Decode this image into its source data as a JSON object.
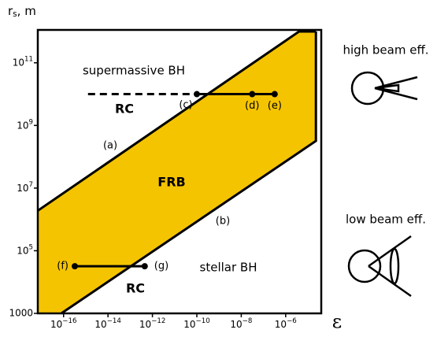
{
  "chart_data": {
    "type": "log_region",
    "xscale": "log",
    "yscale": "log",
    "xlabel": "ε",
    "ylabel": "rs, m",
    "xlim": [
      6.9e-18,
      4e-05
    ],
    "ylim": [
      1000,
      1120000000000.0
    ],
    "xticks": [
      {
        "value": 1e-16,
        "label": "10−16"
      },
      {
        "value": 1e-14,
        "label": "10−14"
      },
      {
        "value": 1e-12,
        "label": "10−12"
      },
      {
        "value": 1e-10,
        "label": "10−10"
      },
      {
        "value": 1e-08,
        "label": "10−8"
      },
      {
        "value": 1e-06,
        "label": "10−6"
      }
    ],
    "yticks": [
      1000,
      {
        "value": 100000.0,
        "label": "105"
      },
      {
        "value": 10000000.0,
        "label": "107"
      },
      {
        "value": 1000000000.0,
        "label": "109"
      },
      {
        "value": 100000000000.0,
        "label": "1011"
      }
    ],
    "band": {
      "color": "#f5c400",
      "x": [
        6.9e-18,
        6.9e-18,
        4e-06,
        2.3e-05,
        2.3e-05,
        7.9e-17
      ],
      "y": [
        1000,
        1900000.0,
        1000000000000.0,
        1000000000000.0,
        320000000.0,
        1000
      ]
    },
    "lines": [
      {
        "x": [
          6.9e-18,
          4e-06,
          2.3e-05
        ],
        "y": [
          1900000.0,
          1000000000000.0,
          1000000000000.0
        ],
        "dash": false
      },
      {
        "x": [
          7.9e-17,
          2.3e-05,
          2.3e-05
        ],
        "y": [
          1000,
          320000000.0,
          1000000000000.0
        ],
        "dash": false
      },
      {
        "x": [
          1.26e-15,
          1e-10
        ],
        "y": [
          10000000000.0,
          10000000000.0
        ],
        "dash": true
      },
      {
        "x": [
          1e-10,
          3.2e-07
        ],
        "y": [
          10000000000.0,
          10000000000.0
        ],
        "dash": false
      },
      {
        "x": [
          3.2e-16,
          4.5e-13
        ],
        "y": [
          32000.0,
          32000.0
        ],
        "dash": false
      }
    ],
    "points": {
      "x": [
        1e-10,
        3.1e-08,
        3.2e-07,
        3.2e-16,
        4.5e-13
      ],
      "y": [
        10000000000.0,
        10000000000.0,
        10000000000.0,
        32000.0,
        32000.0
      ],
      "labels": [
        "(c)",
        "(d)",
        "(e)",
        "(f)",
        "(g)"
      ]
    },
    "annotations": [
      "supermassive BH",
      "RC",
      "(a)",
      "FRB",
      "(b)",
      "stellar BH",
      "RC"
    ],
    "side_labels": [
      "high beam eff.",
      "low beam eff."
    ]
  }
}
